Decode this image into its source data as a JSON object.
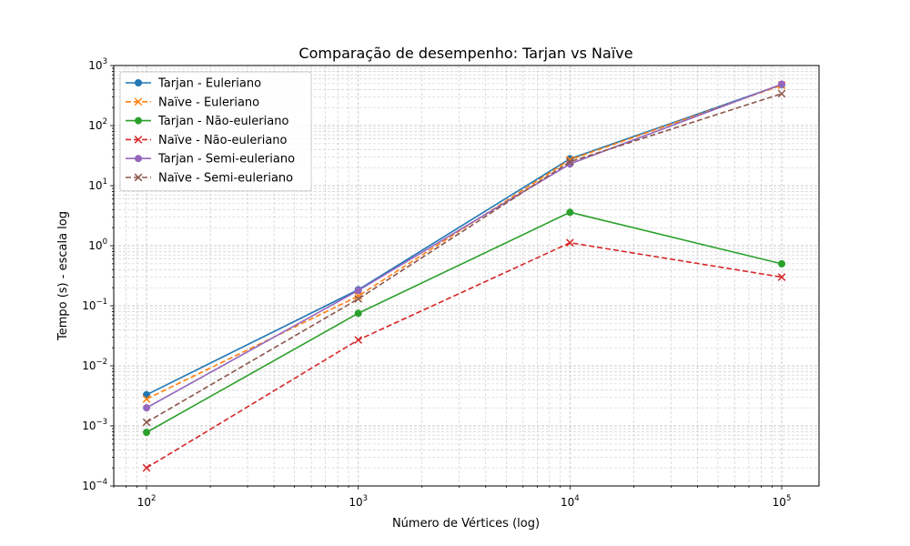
{
  "chart_data": {
    "type": "line",
    "title": "Comparação de desempenho: Tarjan vs Naïve",
    "xlabel": "Número de Vértices (log)",
    "ylabel": "Tempo (s) - escala log",
    "x_scale": "log",
    "y_scale": "log",
    "xlim": [
      70,
      150000
    ],
    "ylim": [
      0.0001,
      1000
    ],
    "x": [
      100,
      1000,
      10000,
      100000
    ],
    "x_ticks": [
      {
        "value": 100,
        "base": "10",
        "exp": "2"
      },
      {
        "value": 1000,
        "base": "10",
        "exp": "3"
      },
      {
        "value": 10000,
        "base": "10",
        "exp": "4"
      },
      {
        "value": 100000,
        "base": "10",
        "exp": "5"
      }
    ],
    "y_ticks": [
      {
        "value": 0.0001,
        "base": "10",
        "exp": "−4"
      },
      {
        "value": 0.001,
        "base": "10",
        "exp": "−3"
      },
      {
        "value": 0.01,
        "base": "10",
        "exp": "−2"
      },
      {
        "value": 0.1,
        "base": "10",
        "exp": "−1"
      },
      {
        "value": 1,
        "base": "10",
        "exp": "0"
      },
      {
        "value": 10,
        "base": "10",
        "exp": "1"
      },
      {
        "value": 100,
        "base": "10",
        "exp": "2"
      },
      {
        "value": 1000,
        "base": "10",
        "exp": "3"
      }
    ],
    "grid": true,
    "legend_position": "top-left",
    "series": [
      {
        "name": "Tarjan - Euleriano",
        "color": "#1f77b4",
        "dash": "solid",
        "marker": "circle",
        "values": [
          0.0033,
          0.185,
          28,
          480
        ]
      },
      {
        "name": "Naïve - Euleriano",
        "color": "#ff7f0e",
        "dash": "dashed",
        "marker": "x",
        "values": [
          0.0028,
          0.145,
          27,
          470
        ]
      },
      {
        "name": "Tarjan - Não-euleriano",
        "color": "#2ca02c",
        "dash": "solid",
        "marker": "circle",
        "values": [
          0.00078,
          0.075,
          3.6,
          0.5
        ]
      },
      {
        "name": "Naïve - Não-euleriano",
        "color": "#d62728",
        "dash": "dashed",
        "marker": "x",
        "values": [
          0.0002,
          0.027,
          1.12,
          0.3
        ]
      },
      {
        "name": "Tarjan - Semi-euleriano",
        "color": "#9467bd",
        "dash": "solid",
        "marker": "circle",
        "values": [
          0.002,
          0.18,
          23,
          490
        ]
      },
      {
        "name": "Naïve - Semi-euleriano",
        "color": "#8c564b",
        "dash": "dashed",
        "marker": "x",
        "values": [
          0.00115,
          0.13,
          25,
          340
        ]
      }
    ]
  }
}
